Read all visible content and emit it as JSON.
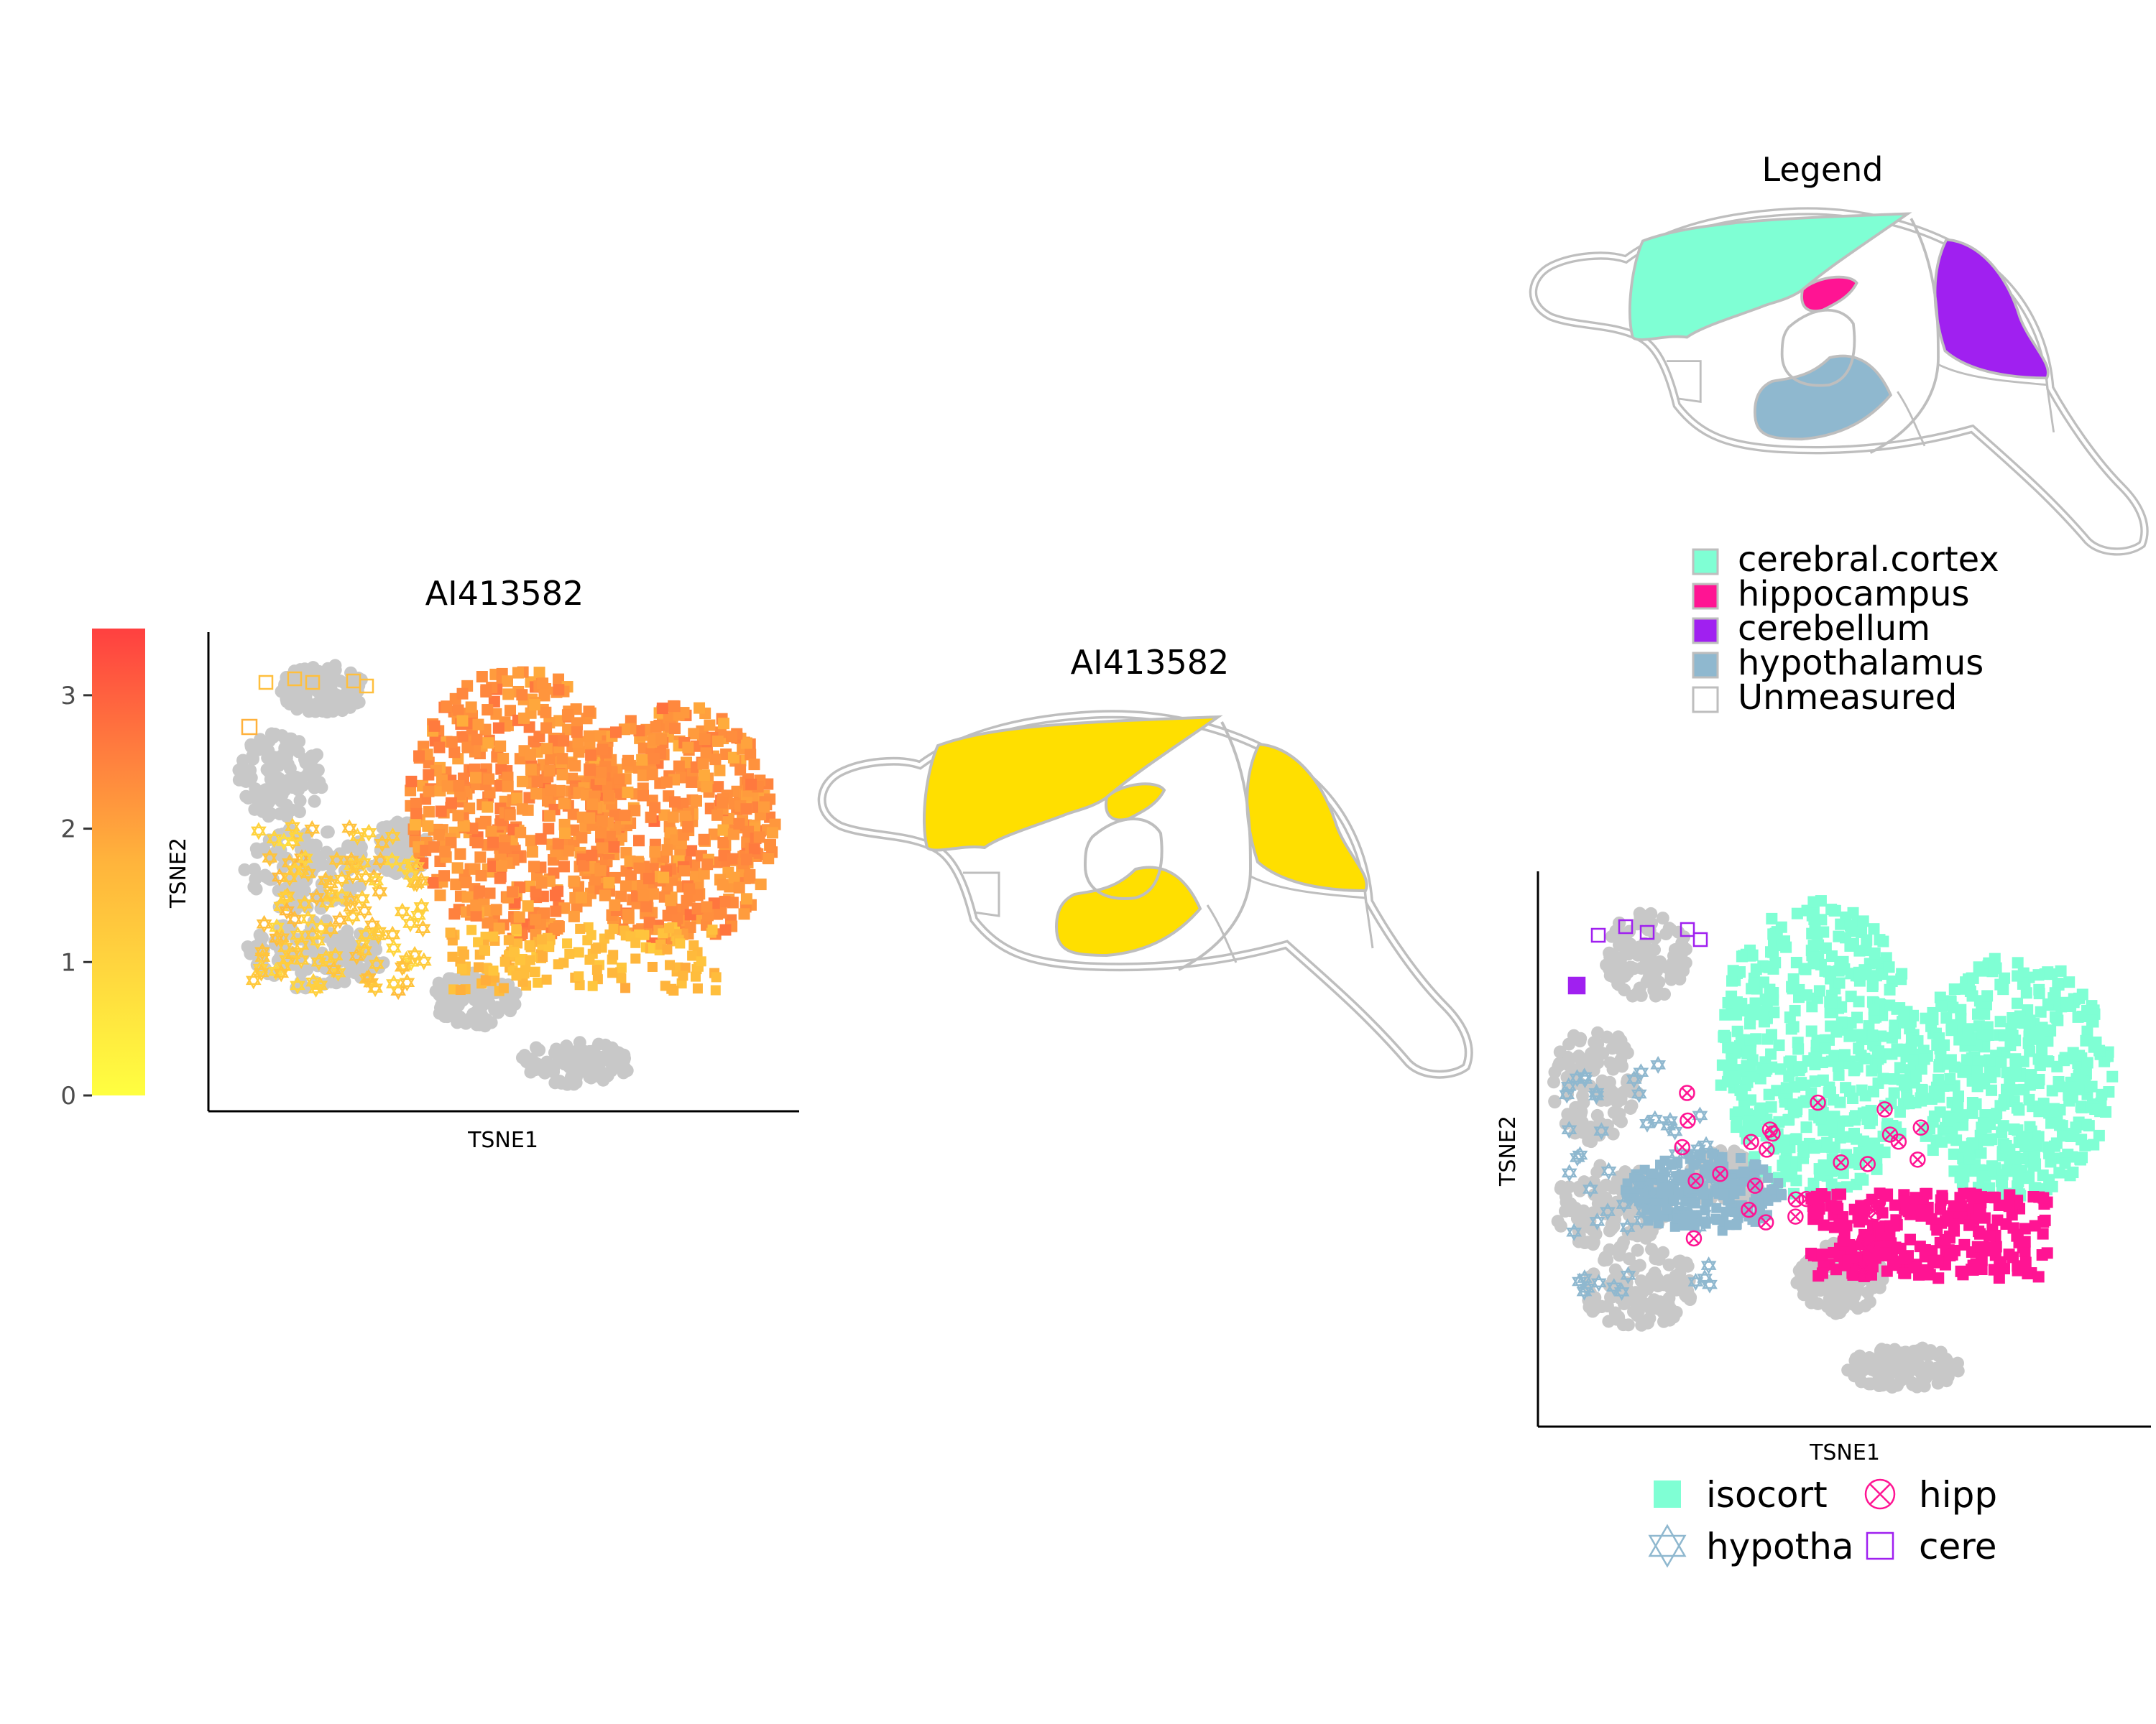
{
  "panels": {
    "left": {
      "title": "AI413582",
      "xlabel": "TSNE1",
      "ylabel": "TSNE2"
    },
    "middle": {
      "title": "AI413582"
    },
    "legend_anatomy": {
      "title": "Legend"
    },
    "right": {
      "xlabel": "TSNE1",
      "ylabel": "TSNE2"
    }
  },
  "colorbar": {
    "ticks": [
      "0",
      "1",
      "2",
      "3"
    ],
    "tick_values": [
      0,
      1,
      2,
      3
    ],
    "range": [
      0,
      3.5
    ],
    "color_low": "#ffff40",
    "color_mid": "#ffb43c",
    "color_high": "#ff4040"
  },
  "region_legend": [
    {
      "label": "cerebral.cortex",
      "color": "#7fffd4"
    },
    {
      "label": "hippocampus",
      "color": "#ff1493"
    },
    {
      "label": "cerebellum",
      "color": "#a020f0"
    },
    {
      "label": "hypothalamus",
      "color": "#8fb8cf"
    },
    {
      "label": "Unmeasured",
      "color": "#ffffff"
    }
  ],
  "shape_legend": [
    {
      "label": "isocort",
      "shape": "filled-square",
      "color": "#7fffd4"
    },
    {
      "label": "hipp",
      "shape": "circle-cross",
      "color": "#ff1493"
    },
    {
      "label": "hypotha",
      "shape": "star-of-david",
      "color": "#8fb8cf"
    },
    {
      "label": "cere",
      "shape": "open-square",
      "color": "#a020f0"
    }
  ],
  "brain_fill": "#ffdf00",
  "outline_color": "#bebebe",
  "unlabeled_cell_color": "#c8c8c8",
  "chart_data": [
    {
      "type": "scatter",
      "title": "AI413582",
      "xlabel": "TSNE1",
      "ylabel": "TSNE2",
      "color_scale": {
        "min": 0,
        "max": 3.5,
        "ticks": [
          0,
          1,
          2,
          3
        ]
      },
      "clusters": [
        {
          "region": "cerebral.cortex",
          "shape": "filled-square",
          "expression_mean": 2.3
        },
        {
          "region": "hippocampus",
          "shape": "circle-cross",
          "expression_mean": 1.6
        },
        {
          "region": "hypothalamus",
          "shape": "star-of-david",
          "expression_mean": 1.2
        },
        {
          "region": "cerebellum",
          "shape": "open-square",
          "expression_mean": 1.3
        }
      ]
    },
    {
      "type": "scatter",
      "xlabel": "TSNE1",
      "ylabel": "TSNE2",
      "series": [
        {
          "name": "isocort",
          "color": "#7fffd4",
          "shape": "filled-square"
        },
        {
          "name": "hipp",
          "color": "#ff1493",
          "shape": "circle-cross"
        },
        {
          "name": "hypotha",
          "color": "#8fb8cf",
          "shape": "star-of-david"
        },
        {
          "name": "cere",
          "color": "#a020f0",
          "shape": "open-square"
        }
      ]
    }
  ]
}
